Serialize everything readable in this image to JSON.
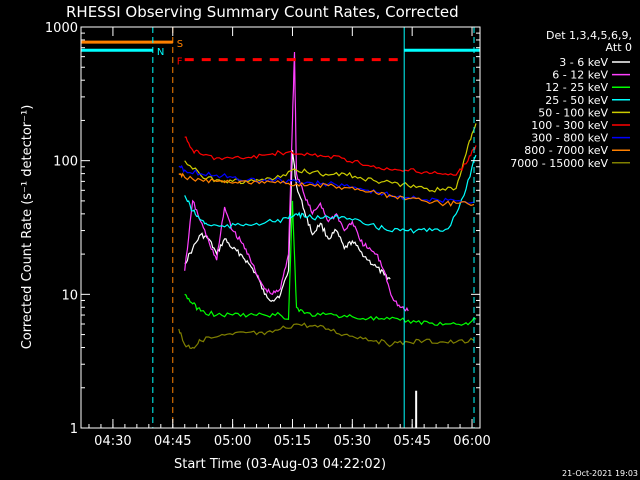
{
  "chart_data": {
    "type": "line",
    "title": "RHESSI Observing Summary Count Rates, Corrected",
    "xlabel": "Start Time (03-Aug-03 04:22:02)",
    "ylabel": "Corrected Count Rate (s⁻¹ detector⁻¹)",
    "yscale": "log",
    "ylim": [
      1,
      1000
    ],
    "xlim_minutes": [
      0,
      100
    ],
    "x_ticks": [
      {
        "label": "04:30",
        "minute": 8
      },
      {
        "label": "04:45",
        "minute": 23
      },
      {
        "label": "05:00",
        "minute": 38
      },
      {
        "label": "05:15",
        "minute": 53
      },
      {
        "label": "05:30",
        "minute": 68
      },
      {
        "label": "05:45",
        "minute": 83
      },
      {
        "label": "06:00",
        "minute": 98
      }
    ],
    "y_ticks": [
      {
        "label": "1",
        "value": 1
      },
      {
        "label": "10",
        "value": 10
      },
      {
        "label": "100",
        "value": 100
      },
      {
        "label": "1000",
        "value": 1000
      }
    ],
    "legend": {
      "placement": "top-right",
      "header_lines": [
        "Det 1,3,4,5,6,9,",
        "Att 0"
      ]
    },
    "series": [
      {
        "name": "3 - 6 keV",
        "color": "#ffffff",
        "x": [
          26,
          28,
          30,
          32,
          34,
          36,
          38,
          40,
          42,
          44,
          46,
          48,
          50,
          52,
          53,
          54,
          56,
          58,
          60,
          62,
          64,
          66,
          68,
          70,
          72,
          74,
          76,
          77.5
        ],
        "values": [
          17,
          22,
          28,
          26,
          20,
          26,
          22,
          20,
          17,
          14,
          10,
          9,
          10,
          15,
          120,
          65,
          42,
          28,
          34,
          26,
          30,
          22,
          25,
          21,
          18,
          16,
          14,
          13
        ]
      },
      {
        "name": "6 - 12 keV",
        "color": "#ff40ff",
        "x": [
          26,
          28,
          30,
          32,
          34,
          36,
          38,
          40,
          42,
          44,
          46,
          48,
          50,
          52,
          53,
          53.5,
          54,
          56,
          58,
          60,
          62,
          64,
          66,
          68,
          70,
          72,
          74,
          76,
          78,
          80,
          82
        ],
        "values": [
          15,
          50,
          35,
          25,
          18,
          45,
          30,
          25,
          20,
          14,
          11,
          10,
          11,
          20,
          200,
          650,
          80,
          55,
          40,
          48,
          35,
          40,
          30,
          35,
          25,
          22,
          20,
          15,
          9.5,
          8,
          7.5
        ]
      },
      {
        "name": "12 - 25 keV",
        "color": "#00ff00",
        "x": [
          26,
          28,
          30,
          34,
          38,
          42,
          46,
          50,
          52,
          53,
          54,
          56,
          60,
          64,
          68,
          72,
          76,
          80,
          84,
          88,
          92,
          96,
          99
        ],
        "values": [
          10,
          8.5,
          7.5,
          7,
          7,
          7,
          7,
          7,
          6.5,
          50,
          8,
          7.2,
          7,
          7,
          6.8,
          6.6,
          6.5,
          6.4,
          6.2,
          6.1,
          6,
          6,
          6.5
        ]
      },
      {
        "name": "25 - 50 keV",
        "color": "#00ffff",
        "x": [
          26,
          28,
          30,
          32,
          36,
          40,
          44,
          48,
          52,
          54,
          56,
          60,
          64,
          68,
          72,
          76,
          80,
          84,
          88,
          92,
          96,
          99
        ],
        "values": [
          55,
          42,
          36,
          33,
          32,
          33,
          34,
          35,
          37,
          40,
          38,
          37,
          39,
          36,
          33,
          31,
          30,
          30,
          30,
          31,
          55,
          110
        ]
      },
      {
        "name": "50 - 100 keV",
        "color": "#cccc00",
        "x": [
          26,
          30,
          34,
          38,
          42,
          46,
          50,
          54,
          58,
          62,
          66,
          70,
          74,
          78,
          82,
          86,
          90,
          94,
          97,
          99
        ],
        "values": [
          100,
          78,
          72,
          70,
          70,
          72,
          75,
          85,
          82,
          78,
          80,
          75,
          70,
          68,
          65,
          62,
          60,
          62,
          130,
          190
        ]
      },
      {
        "name": "100 - 300 keV",
        "color": "#ff0000",
        "x": [
          26,
          28,
          30,
          34,
          38,
          42,
          46,
          50,
          54,
          58,
          62,
          66,
          70,
          74,
          78,
          82,
          86,
          90,
          94,
          97,
          99
        ],
        "values": [
          150,
          120,
          112,
          105,
          104,
          106,
          110,
          115,
          112,
          110,
          108,
          104,
          95,
          88,
          85,
          84,
          82,
          80,
          78,
          100,
          130
        ]
      },
      {
        "name": "300 - 800 keV",
        "color": "#0000ff",
        "x": [
          24.5,
          26,
          30,
          34,
          38,
          42,
          46,
          50,
          54,
          58,
          62,
          66,
          70,
          74,
          78,
          82,
          86,
          90,
          94,
          98.5
        ],
        "values": [
          90,
          85,
          80,
          78,
          75,
          72,
          72,
          72,
          70,
          68,
          67,
          65,
          62,
          58,
          55,
          53,
          51,
          50,
          50,
          49
        ]
      },
      {
        "name": "800 - 7000 keV",
        "color": "#ff8000",
        "x": [
          24.5,
          26,
          30,
          34,
          38,
          42,
          46,
          50,
          54,
          58,
          62,
          66,
          70,
          74,
          78,
          82,
          86,
          90,
          94,
          98.5
        ],
        "values": [
          80,
          75,
          72,
          70,
          68,
          68,
          68,
          68,
          67,
          66,
          65,
          63,
          60,
          57,
          54,
          52,
          50,
          48,
          48,
          47
        ]
      },
      {
        "name": "7000 - 15000 keV",
        "color": "#808000",
        "x": [
          24.5,
          26,
          28,
          30,
          34,
          38,
          42,
          46,
          50,
          54,
          58,
          62,
          66,
          70,
          74,
          78,
          82,
          86,
          90,
          94,
          98.5
        ],
        "values": [
          5.5,
          4.2,
          4,
          4.5,
          4.8,
          5,
          5.2,
          5,
          5.5,
          6,
          5.8,
          5.5,
          5,
          4.8,
          4.5,
          4.2,
          4.4,
          4.5,
          4.4,
          4.4,
          4.5
        ]
      }
    ],
    "flag_bars": [
      {
        "label": "S",
        "color": "#ff8000",
        "x_start": 0,
        "x_end": 23,
        "value": 770
      },
      {
        "label": "N",
        "color": "#00ffff",
        "x_start": 0,
        "x_end": 18,
        "value": 670
      },
      {
        "label": "N",
        "color": "#00ffff",
        "x_start": 81,
        "x_end": 100,
        "value": 670
      },
      {
        "label": "F",
        "color": "#ff0000",
        "x_start": 26,
        "x_end": 80,
        "value": 570,
        "dashed": true
      }
    ],
    "vertical_lines": [
      {
        "minute": 18,
        "color": "#00ffff",
        "dashed": true
      },
      {
        "minute": 23,
        "color": "#ff8000",
        "dashed": true
      },
      {
        "minute": 81,
        "color": "#00ffff",
        "dashed": false
      },
      {
        "minute": 98.5,
        "color": "#00ffff",
        "dashed": true
      }
    ],
    "spike": {
      "minute": 84,
      "value": 1.9,
      "color": "#ffffff"
    }
  },
  "footer": {
    "date_stamp": "21-Oct-2021 19:03"
  }
}
